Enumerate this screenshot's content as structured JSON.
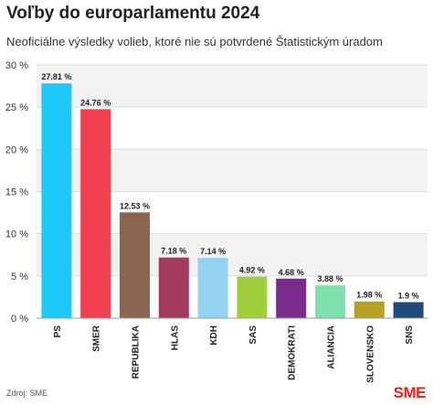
{
  "title": "Voľby do europarlamentu 2024",
  "subtitle": "Neoficiálne výsledky volieb, ktoré nie sú potvrdené Štatistickým úradom",
  "source": "Zdroj: SME",
  "logo": "SME",
  "chart_data": {
    "type": "bar",
    "categories": [
      "PS",
      "SMER",
      "REPUBLIKA",
      "HLAS",
      "KDH",
      "SAS",
      "DEMOKRATI",
      "ALIANCIA",
      "SLOVENSKO",
      "SNS"
    ],
    "values": [
      27.81,
      24.76,
      12.53,
      7.18,
      7.14,
      4.92,
      4.68,
      3.88,
      1.98,
      1.9
    ],
    "value_labels": [
      "27.81 %",
      "24.76 %",
      "12.53 %",
      "7.18 %",
      "7.14 %",
      "4.92 %",
      "4.68 %",
      "3.88 %",
      "1.98 %",
      "1.9 %"
    ],
    "colors": [
      "#1ec8f7",
      "#f0404f",
      "#8b6452",
      "#a23b5f",
      "#93d2f0",
      "#9fcf3d",
      "#7a2c8c",
      "#7fe0ad",
      "#b5a02c",
      "#1f4a7a"
    ],
    "yticks": [
      0,
      5,
      10,
      15,
      20,
      25,
      30
    ],
    "ytick_labels": [
      "0 %",
      "5 %",
      "10 %",
      "15 %",
      "20 %",
      "25 %",
      "30 %"
    ],
    "ylim": [
      0,
      30
    ],
    "grid": true
  }
}
